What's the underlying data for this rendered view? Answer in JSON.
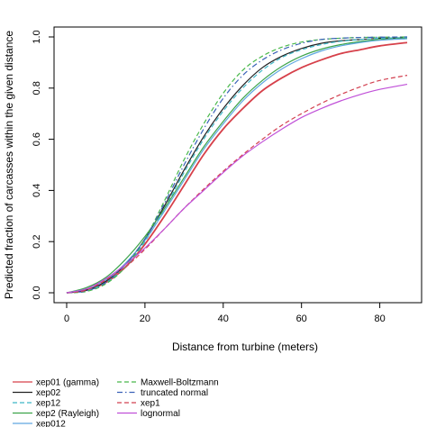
{
  "chart_data": {
    "type": "line",
    "xlabel": "Distance from turbine (meters)",
    "ylabel": "Predicted fraction of carcasses within the given distance",
    "xlim": [
      0,
      87
    ],
    "ylim": [
      0,
      1
    ],
    "x_ticks": [
      0,
      20,
      40,
      60,
      80
    ],
    "y_ticks": [
      0.0,
      0.2,
      0.4,
      0.6,
      0.8,
      1.0
    ],
    "x_tick_labels": [
      "0",
      "20",
      "40",
      "60",
      "80"
    ],
    "y_tick_labels": [
      "0.0",
      "0.2",
      "0.4",
      "0.6",
      "0.8",
      "1.0"
    ],
    "grid": false,
    "legend_position": "bottom",
    "x": [
      0,
      5,
      10,
      15,
      20,
      25,
      30,
      35,
      40,
      45,
      50,
      55,
      60,
      65,
      70,
      75,
      80,
      87
    ],
    "series": [
      {
        "name": "xep01 (gamma)",
        "color": "#d6404a",
        "dash": "solid",
        "values": [
          0,
          0.01,
          0.04,
          0.1,
          0.19,
          0.3,
          0.42,
          0.54,
          0.64,
          0.72,
          0.79,
          0.84,
          0.88,
          0.91,
          0.935,
          0.95,
          0.965,
          0.978
        ]
      },
      {
        "name": "xep02",
        "color": "#222222",
        "dash": "solid",
        "values": [
          0,
          0.01,
          0.045,
          0.11,
          0.21,
          0.34,
          0.48,
          0.61,
          0.72,
          0.81,
          0.88,
          0.925,
          0.955,
          0.975,
          0.985,
          0.99,
          0.995,
          0.997
        ]
      },
      {
        "name": "xep12",
        "color": "#3fb8c8",
        "dash": "dashed",
        "values": [
          0,
          0.008,
          0.04,
          0.1,
          0.2,
          0.33,
          0.47,
          0.6,
          0.71,
          0.8,
          0.87,
          0.92,
          0.95,
          0.97,
          0.983,
          0.99,
          0.995,
          0.997
        ]
      },
      {
        "name": "xep2 (Rayleigh)",
        "color": "#3ca44a",
        "dash": "solid",
        "values": [
          0,
          0.02,
          0.06,
          0.13,
          0.22,
          0.33,
          0.45,
          0.57,
          0.67,
          0.76,
          0.83,
          0.885,
          0.925,
          0.952,
          0.97,
          0.982,
          0.99,
          0.995
        ]
      },
      {
        "name": "xep012",
        "color": "#5fa8e0",
        "dash": "solid",
        "values": [
          0,
          0.015,
          0.05,
          0.115,
          0.205,
          0.32,
          0.44,
          0.56,
          0.66,
          0.75,
          0.82,
          0.875,
          0.915,
          0.945,
          0.965,
          0.978,
          0.987,
          0.993
        ]
      },
      {
        "name": "Maxwell-Boltzmann",
        "color": "#49b84a",
        "dash": "dashed",
        "values": [
          0,
          0.005,
          0.035,
          0.1,
          0.21,
          0.36,
          0.52,
          0.66,
          0.78,
          0.87,
          0.925,
          0.96,
          0.98,
          0.99,
          0.995,
          0.998,
          0.999,
          1.0
        ]
      },
      {
        "name": "truncated normal",
        "color": "#3b62b8",
        "dash": "dashdot",
        "values": [
          0,
          0.007,
          0.04,
          0.11,
          0.21,
          0.35,
          0.5,
          0.64,
          0.76,
          0.85,
          0.91,
          0.95,
          0.975,
          0.99,
          0.995,
          0.998,
          0.999,
          1.0
        ]
      },
      {
        "name": "xep1",
        "color": "#d24050",
        "dash": "dashed",
        "values": [
          0,
          0.01,
          0.05,
          0.1,
          0.17,
          0.25,
          0.33,
          0.405,
          0.475,
          0.54,
          0.6,
          0.655,
          0.7,
          0.74,
          0.775,
          0.805,
          0.83,
          0.85
        ]
      },
      {
        "name": "lognormal",
        "color": "#c050d8",
        "dash": "solid",
        "values": [
          0,
          0.015,
          0.055,
          0.11,
          0.175,
          0.25,
          0.33,
          0.4,
          0.47,
          0.535,
          0.59,
          0.64,
          0.685,
          0.72,
          0.75,
          0.775,
          0.795,
          0.815
        ]
      }
    ]
  }
}
